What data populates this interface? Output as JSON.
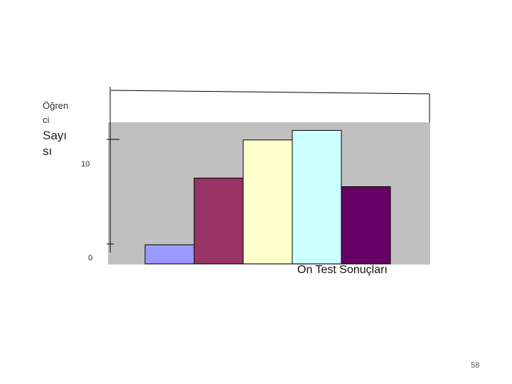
{
  "chart_data": {
    "type": "bar",
    "ylabel_lines": [
      "Öğren",
      "ci",
      "Sayı",
      "sı"
    ],
    "xlabel": "Ön Test Sonuçları",
    "yticks": [
      "10",
      "0"
    ],
    "ylim": [
      0,
      15
    ],
    "values": [
      2,
      9,
      13,
      14,
      8.1
    ],
    "colors": [
      "#9999ff",
      "#993366",
      "#ffffcc",
      "#ccffff",
      "#660066"
    ],
    "plot_bg": "#c0c0c0",
    "grid": false
  },
  "page_number": "58"
}
